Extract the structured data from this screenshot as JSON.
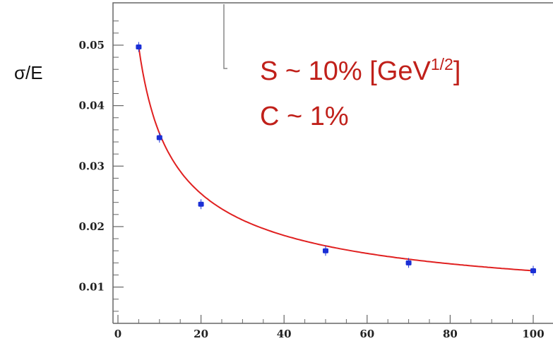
{
  "chart_data": {
    "type": "scatter",
    "title": "",
    "xlabel": "",
    "ylabel": "σ/E",
    "xlim": [
      0,
      100
    ],
    "ylim": [
      0.004,
      0.057
    ],
    "x_ticks": [
      "0",
      "20",
      "40",
      "60",
      "80",
      "100"
    ],
    "y_ticks": [
      "0.01",
      "0.02",
      "0.03",
      "0.04",
      "0.05"
    ],
    "grid": false,
    "series": [
      {
        "x": [
          5,
          10,
          20,
          50,
          70,
          100
        ],
        "y": [
          0.0497,
          0.0347,
          0.0237,
          0.016,
          0.014,
          0.0127
        ],
        "color": "#1a2fd6"
      }
    ],
    "fit": {
      "x_range": [
        5,
        100
      ],
      "color": "#e02020"
    },
    "annotations": {
      "line1_main": "S ~ 10% [GeV",
      "line1_sup": "1/2",
      "line1_end": "]",
      "line2": "C ~ 1%",
      "color": "#c0201a"
    }
  }
}
